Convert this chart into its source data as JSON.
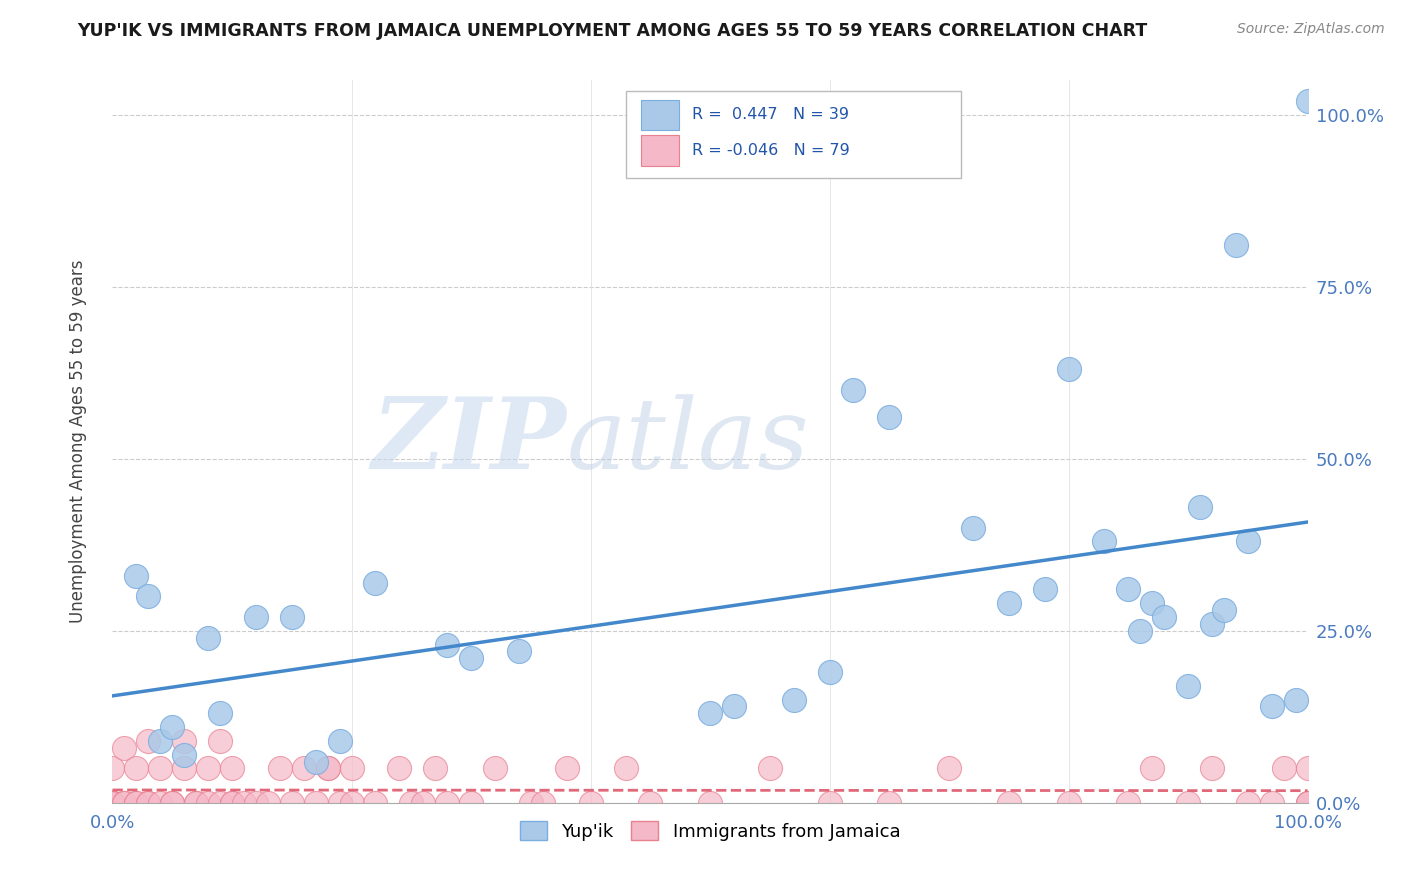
{
  "title": "YUP'IK VS IMMIGRANTS FROM JAMAICA UNEMPLOYMENT AMONG AGES 55 TO 59 YEARS CORRELATION CHART",
  "source": "Source: ZipAtlas.com",
  "ylabel": "Unemployment Among Ages 55 to 59 years",
  "xlim": [
    0,
    1
  ],
  "ylim": [
    0,
    1.05
  ],
  "xtick_labels": [
    "0.0%",
    "100.0%"
  ],
  "ytick_labels": [
    "0.0%",
    "25.0%",
    "50.0%",
    "75.0%",
    "100.0%"
  ],
  "ytick_vals": [
    0,
    0.25,
    0.5,
    0.75,
    1.0
  ],
  "background_color": "#ffffff",
  "plot_bg_color": "#ffffff",
  "grid_color": "#cccccc",
  "legend_r1": "R =  0.447",
  "legend_n1": "N = 39",
  "legend_r2": "R = -0.046",
  "legend_n2": "N = 79",
  "color_yupik": "#aac9e8",
  "color_jamaica": "#f5b8c8",
  "edge_yupik": "#7aade0",
  "edge_jamaica": "#e88090",
  "line_color_yupik": "#4488cc",
  "line_color_jamaica": "#e06878",
  "watermark_zip": "ZIP",
  "watermark_atlas": "atlas",
  "yupik_x": [
    0.02,
    0.03,
    0.04,
    0.05,
    0.06,
    0.08,
    0.09,
    0.12,
    0.15,
    0.17,
    0.19,
    0.22,
    0.28,
    0.3,
    0.34,
    0.5,
    0.52,
    0.57,
    0.6,
    0.62,
    0.65,
    0.72,
    0.75,
    0.78,
    0.8,
    0.83,
    0.85,
    0.86,
    0.87,
    0.88,
    0.9,
    0.91,
    0.92,
    0.93,
    0.94,
    0.95,
    0.97,
    0.99,
    1.0
  ],
  "yupik_y": [
    0.33,
    0.3,
    0.09,
    0.11,
    0.07,
    0.24,
    0.13,
    0.27,
    0.27,
    0.06,
    0.09,
    0.32,
    0.23,
    0.21,
    0.22,
    0.13,
    0.14,
    0.15,
    0.19,
    0.6,
    0.56,
    0.4,
    0.29,
    0.31,
    0.63,
    0.38,
    0.31,
    0.25,
    0.29,
    0.27,
    0.17,
    0.43,
    0.26,
    0.28,
    0.81,
    0.38,
    0.14,
    0.15,
    1.02
  ],
  "jamaica_x": [
    0.0,
    0.0,
    0.0,
    0.0,
    0.0,
    0.0,
    0.0,
    0.0,
    0.0,
    0.0,
    0.0,
    0.01,
    0.01,
    0.01,
    0.02,
    0.02,
    0.02,
    0.03,
    0.03,
    0.03,
    0.04,
    0.04,
    0.05,
    0.05,
    0.06,
    0.06,
    0.07,
    0.07,
    0.08,
    0.08,
    0.09,
    0.09,
    0.1,
    0.1,
    0.1,
    0.11,
    0.12,
    0.13,
    0.14,
    0.15,
    0.16,
    0.17,
    0.18,
    0.18,
    0.19,
    0.2,
    0.2,
    0.22,
    0.24,
    0.25,
    0.26,
    0.27,
    0.28,
    0.3,
    0.32,
    0.35,
    0.36,
    0.38,
    0.4,
    0.43,
    0.45,
    0.5,
    0.55,
    0.6,
    0.65,
    0.7,
    0.75,
    0.8,
    0.85,
    0.87,
    0.9,
    0.92,
    0.95,
    0.97,
    0.98,
    1.0,
    1.0,
    1.0,
    1.0
  ],
  "jamaica_y": [
    0.0,
    0.0,
    0.0,
    0.0,
    0.0,
    0.0,
    0.0,
    0.0,
    0.0,
    0.0,
    0.05,
    0.0,
    0.0,
    0.08,
    0.0,
    0.0,
    0.05,
    0.0,
    0.0,
    0.09,
    0.0,
    0.05,
    0.0,
    0.0,
    0.05,
    0.09,
    0.0,
    0.0,
    0.0,
    0.05,
    0.0,
    0.09,
    0.0,
    0.0,
    0.05,
    0.0,
    0.0,
    0.0,
    0.05,
    0.0,
    0.05,
    0.0,
    0.05,
    0.05,
    0.0,
    0.0,
    0.05,
    0.0,
    0.05,
    0.0,
    0.0,
    0.05,
    0.0,
    0.0,
    0.05,
    0.0,
    0.0,
    0.05,
    0.0,
    0.05,
    0.0,
    0.0,
    0.05,
    0.0,
    0.0,
    0.05,
    0.0,
    0.0,
    0.0,
    0.05,
    0.0,
    0.05,
    0.0,
    0.0,
    0.05,
    0.0,
    0.0,
    0.0,
    0.05
  ]
}
